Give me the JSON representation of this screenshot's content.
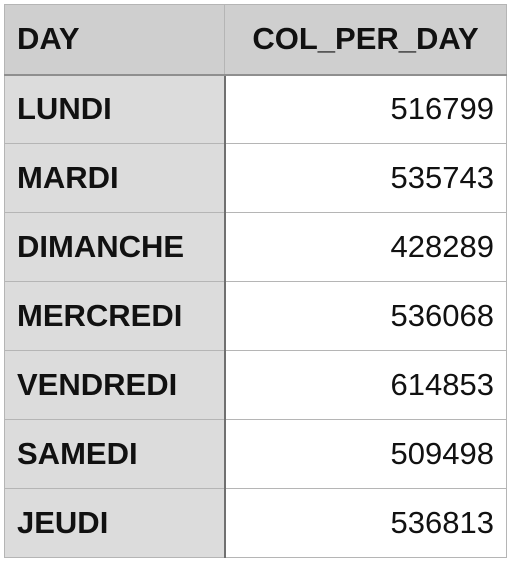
{
  "table": {
    "headers": [
      "DAY",
      "COL_PER_DAY"
    ],
    "rows": [
      {
        "day": "LUNDI",
        "value": "516799"
      },
      {
        "day": "MARDI",
        "value": "535743"
      },
      {
        "day": "DIMANCHE",
        "value": "428289"
      },
      {
        "day": "MERCREDI",
        "value": "536068"
      },
      {
        "day": "VENDREDI",
        "value": "614853"
      },
      {
        "day": "SAMEDI",
        "value": "509498"
      },
      {
        "day": "JEUDI",
        "value": "536813"
      }
    ]
  }
}
